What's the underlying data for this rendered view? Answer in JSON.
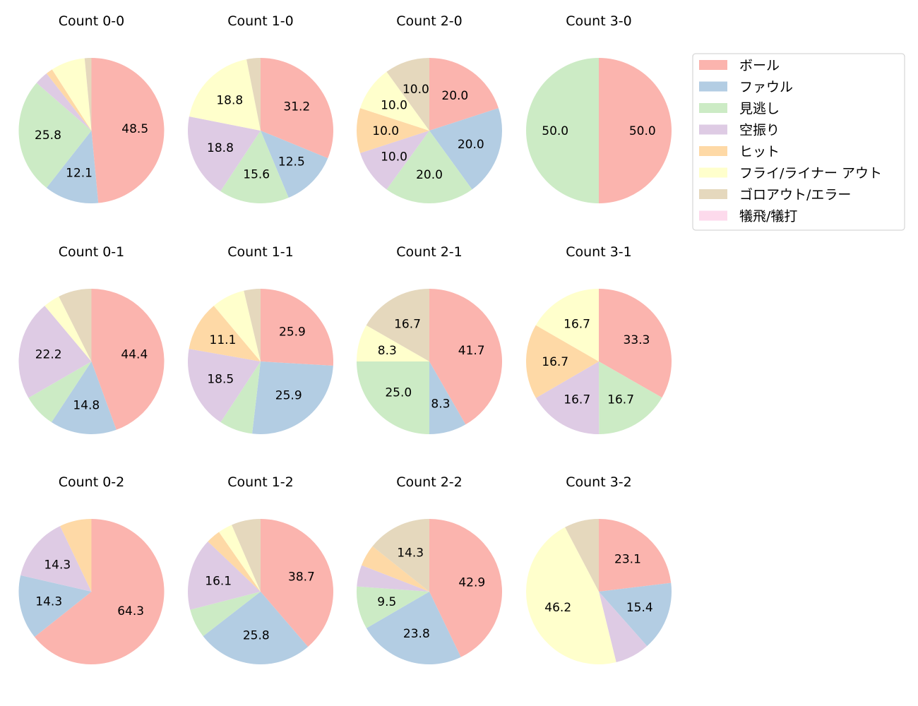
{
  "legend": {
    "items": [
      {
        "label": "ボール",
        "color": "#fbb4ae"
      },
      {
        "label": "ファウル",
        "color": "#b3cde3"
      },
      {
        "label": "見逃し",
        "color": "#ccebc5"
      },
      {
        "label": "空振り",
        "color": "#decbe4"
      },
      {
        "label": "ヒット",
        "color": "#fed9a6"
      },
      {
        "label": "フライ/ライナー アウト",
        "color": "#ffffcc"
      },
      {
        "label": "ゴロアウト/エラー",
        "color": "#e5d8bd"
      },
      {
        "label": "犠飛/犠打",
        "color": "#fddaec"
      }
    ]
  },
  "chart_data": [
    {
      "type": "pie",
      "title": "Count 0-0",
      "categories": [
        "ボール",
        "ファウル",
        "見逃し",
        "空振り",
        "ヒット",
        "フライ/ライナー アウト",
        "ゴロアウト/エラー",
        "犠飛/犠打"
      ],
      "values": [
        48.5,
        12.1,
        25.8,
        3.0,
        1.5,
        7.6,
        1.5,
        0
      ],
      "labels": [
        "48.5",
        "12.1",
        "25.8",
        "",
        "",
        "",
        "",
        ""
      ]
    },
    {
      "type": "pie",
      "title": "Count 1-0",
      "categories": [
        "ボール",
        "ファウル",
        "見逃し",
        "空振り",
        "ヒット",
        "フライ/ライナー アウト",
        "ゴロアウト/エラー",
        "犠飛/犠打"
      ],
      "values": [
        31.2,
        12.5,
        15.6,
        18.8,
        0,
        18.8,
        3.1,
        0
      ],
      "labels": [
        "31.2",
        "12.5",
        "15.6",
        "18.8",
        "",
        "18.8",
        "",
        ""
      ]
    },
    {
      "type": "pie",
      "title": "Count 2-0",
      "categories": [
        "ボール",
        "ファウル",
        "見逃し",
        "空振り",
        "ヒット",
        "フライ/ライナー アウト",
        "ゴロアウト/エラー",
        "犠飛/犠打"
      ],
      "values": [
        20.0,
        20.0,
        20.0,
        10.0,
        10.0,
        10.0,
        10.0,
        0
      ],
      "labels": [
        "20.0",
        "20.0",
        "20.0",
        "10.0",
        "10.0",
        "10.0",
        "10.0",
        ""
      ]
    },
    {
      "type": "pie",
      "title": "Count 3-0",
      "categories": [
        "ボール",
        "ファウル",
        "見逃し",
        "空振り",
        "ヒット",
        "フライ/ライナー アウト",
        "ゴロアウト/エラー",
        "犠飛/犠打"
      ],
      "values": [
        50.0,
        0,
        50.0,
        0,
        0,
        0,
        0,
        0
      ],
      "labels": [
        "50.0",
        "",
        "50.0",
        "",
        "",
        "",
        "",
        ""
      ]
    },
    {
      "type": "pie",
      "title": "Count 0-1",
      "categories": [
        "ボール",
        "ファウル",
        "見逃し",
        "空振り",
        "ヒット",
        "フライ/ライナー アウト",
        "ゴロアウト/エラー",
        "犠飛/犠打"
      ],
      "values": [
        44.4,
        14.8,
        7.4,
        22.2,
        0,
        3.7,
        7.4,
        0
      ],
      "labels": [
        "44.4",
        "14.8",
        "",
        "22.2",
        "",
        "",
        "",
        ""
      ]
    },
    {
      "type": "pie",
      "title": "Count 1-1",
      "categories": [
        "ボール",
        "ファウル",
        "見逃し",
        "空振り",
        "ヒット",
        "フライ/ライナー アウト",
        "ゴロアウト/エラー",
        "犠飛/犠打"
      ],
      "values": [
        25.9,
        25.9,
        7.4,
        18.5,
        11.1,
        7.4,
        3.7,
        0
      ],
      "labels": [
        "25.9",
        "25.9",
        "",
        "18.5",
        "11.1",
        "",
        "",
        ""
      ]
    },
    {
      "type": "pie",
      "title": "Count 2-1",
      "categories": [
        "ボール",
        "ファウル",
        "見逃し",
        "空振り",
        "ヒット",
        "フライ/ライナー アウト",
        "ゴロアウト/エラー",
        "犠飛/犠打"
      ],
      "values": [
        41.7,
        8.3,
        25.0,
        0,
        0,
        8.3,
        16.7,
        0
      ],
      "labels": [
        "41.7",
        "8.3",
        "25.0",
        "",
        "",
        "8.3",
        "16.7",
        ""
      ]
    },
    {
      "type": "pie",
      "title": "Count 3-1",
      "categories": [
        "ボール",
        "ファウル",
        "見逃し",
        "空振り",
        "ヒット",
        "フライ/ライナー アウト",
        "ゴロアウト/エラー",
        "犠飛/犠打"
      ],
      "values": [
        33.3,
        0,
        16.7,
        16.7,
        16.7,
        16.7,
        0,
        0
      ],
      "labels": [
        "33.3",
        "",
        "16.7",
        "16.7",
        "16.7",
        "16.7",
        "",
        ""
      ]
    },
    {
      "type": "pie",
      "title": "Count 0-2",
      "categories": [
        "ボール",
        "ファウル",
        "見逃し",
        "空振り",
        "ヒット",
        "フライ/ライナー アウト",
        "ゴロアウト/エラー",
        "犠飛/犠打"
      ],
      "values": [
        64.3,
        14.3,
        0,
        14.3,
        7.1,
        0,
        0,
        0
      ],
      "labels": [
        "64.3",
        "14.3",
        "",
        "14.3",
        "",
        "",
        "",
        ""
      ]
    },
    {
      "type": "pie",
      "title": "Count 1-2",
      "categories": [
        "ボール",
        "ファウル",
        "見逃し",
        "空振り",
        "ヒット",
        "フライ/ライナー アウト",
        "ゴロアウト/エラー",
        "犠飛/犠打"
      ],
      "values": [
        38.7,
        25.8,
        6.5,
        16.1,
        3.2,
        3.2,
        6.5,
        0
      ],
      "labels": [
        "38.7",
        "25.8",
        "",
        "16.1",
        "",
        "",
        "",
        ""
      ]
    },
    {
      "type": "pie",
      "title": "Count 2-2",
      "categories": [
        "ボール",
        "ファウル",
        "見逃し",
        "空振り",
        "ヒット",
        "フライ/ライナー アウト",
        "ゴロアウト/エラー",
        "犠飛/犠打"
      ],
      "values": [
        42.9,
        23.8,
        9.5,
        4.8,
        4.8,
        0,
        14.3,
        0
      ],
      "labels": [
        "42.9",
        "23.8",
        "9.5",
        "",
        "",
        "",
        "14.3",
        ""
      ]
    },
    {
      "type": "pie",
      "title": "Count 3-2",
      "categories": [
        "ボール",
        "ファウル",
        "見逃し",
        "空振り",
        "ヒット",
        "フライ/ライナー アウト",
        "ゴロアウト/エラー",
        "犠飛/犠打"
      ],
      "values": [
        23.1,
        15.4,
        0,
        7.7,
        0,
        46.2,
        7.7,
        0
      ],
      "labels": [
        "23.1",
        "15.4",
        "",
        "",
        "",
        "46.2",
        "",
        ""
      ]
    }
  ]
}
